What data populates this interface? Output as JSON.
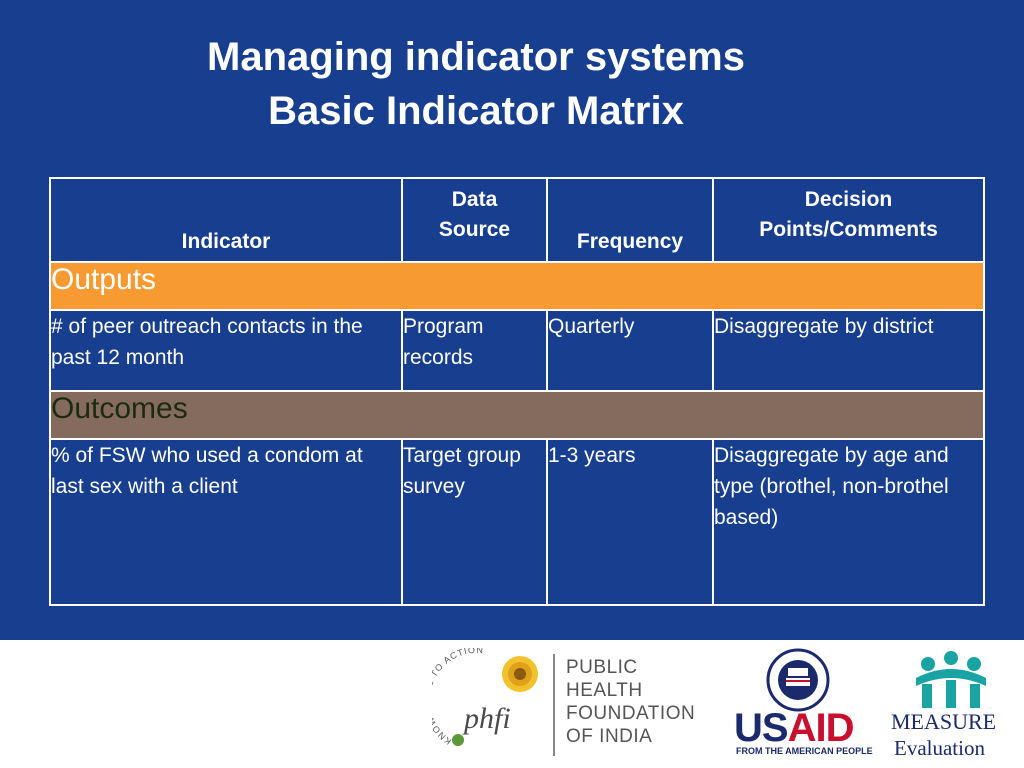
{
  "title": {
    "line1": "Managing indicator systems",
    "line2": "Basic Indicator Matrix"
  },
  "table": {
    "headers": [
      "Indicator",
      "Data Source",
      "Frequency",
      "Decision Points/Comments"
    ],
    "header_lines": {
      "data_source": [
        "Data",
        "Source"
      ],
      "decision": [
        "Decision",
        "Points/Comments"
      ]
    },
    "sections": [
      {
        "label": "Outputs",
        "color": "#f79a32",
        "rows": [
          [
            "# of peer outreach contacts in the past 12 month",
            "Program records",
            "Quarterly",
            "Disaggregate by district"
          ]
        ]
      },
      {
        "label": "Outcomes",
        "color": "#856b5e",
        "rows": [
          [
            "% of FSW who used a condom at last sex with  a client",
            "Target group survey",
            "1-3 years",
            "Disaggregate by age and type (brothel, non-brothel based)"
          ]
        ]
      }
    ]
  },
  "footer": {
    "phfi": {
      "arc_text": "KNOWLEDGE TO ACTION",
      "mark": "phfi",
      "name_lines": [
        "PUBLIC",
        "HEALTH",
        "FOUNDATION",
        "OF INDIA"
      ]
    },
    "usaid": {
      "word": "USAID",
      "tagline": "FROM THE AMERICAN PEOPLE"
    },
    "measure": {
      "word": "MEASURE",
      "sub": "Evaluation"
    }
  },
  "colors": {
    "slide_background": "#173e8f",
    "outputs_band": "#f79a32",
    "outcomes_band": "#856b5e",
    "usaid_red": "#c8102e",
    "usaid_blue": "#1a2a6c",
    "measure_teal": "#1aa3a3"
  }
}
